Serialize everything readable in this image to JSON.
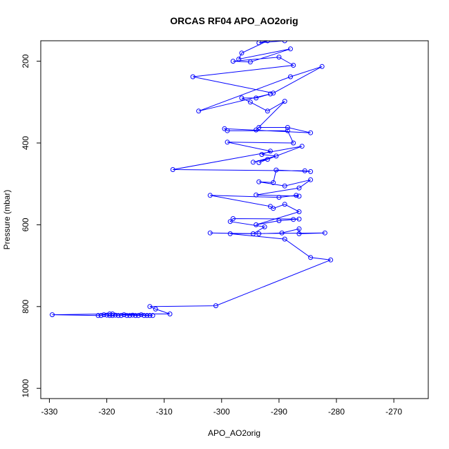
{
  "chart_data": {
    "type": "line",
    "title": "ORCAS RF04 APO_AO2orig",
    "xlabel": "APO_AO2orig",
    "ylabel": "Pressure (mbar)",
    "xlim": [
      -331.5,
      -264
    ],
    "ylim": [
      1025,
      150
    ],
    "y_inverted": true,
    "xticks": [
      -330,
      -320,
      -310,
      -300,
      -290,
      -280,
      -270
    ],
    "yticks": [
      200,
      400,
      600,
      800,
      1000
    ],
    "line_color": "#0000ff",
    "marker": "open-circle",
    "series": [
      {
        "points": [
          [
            -289.0,
            150
          ],
          [
            -293.5,
            155
          ],
          [
            -292.0,
            150
          ],
          [
            -296.5,
            180
          ],
          [
            -297.0,
            195
          ],
          [
            -288.0,
            170
          ],
          [
            -295.0,
            202
          ],
          [
            -298.0,
            200
          ],
          [
            -290.0,
            190
          ],
          [
            -287.5,
            210
          ],
          [
            -305.0,
            238
          ],
          [
            -291.0,
            278
          ],
          [
            -282.5,
            213
          ],
          [
            -288.0,
            238
          ],
          [
            -304.0,
            322
          ],
          [
            -291.5,
            280
          ],
          [
            -294.0,
            290
          ],
          [
            -296.5,
            290
          ],
          [
            -295.0,
            300
          ],
          [
            -292.0,
            322
          ],
          [
            -289.0,
            298
          ],
          [
            -294.0,
            368
          ],
          [
            -293.5,
            362
          ],
          [
            -288.5,
            362
          ],
          [
            -284.5,
            375
          ],
          [
            -299.5,
            365
          ],
          [
            -299.0,
            370
          ],
          [
            -288.5,
            370
          ],
          [
            -287.5,
            400
          ],
          [
            -299.0,
            398
          ],
          [
            -291.5,
            420
          ],
          [
            -293.0,
            428
          ],
          [
            -290.5,
            432
          ],
          [
            -294.5,
            447
          ],
          [
            -292.0,
            440
          ],
          [
            -293.5,
            448
          ],
          [
            -286.0,
            408
          ],
          [
            -308.5,
            465
          ],
          [
            -285.5,
            468
          ],
          [
            -284.5,
            470
          ],
          [
            -290.5,
            466
          ],
          [
            -291.0,
            497
          ],
          [
            -293.5,
            495
          ],
          [
            -289.0,
            505
          ],
          [
            -284.5,
            490
          ],
          [
            -286.5,
            510
          ],
          [
            -294.0,
            527
          ],
          [
            -286.5,
            530
          ],
          [
            -287.0,
            528
          ],
          [
            -290.0,
            533
          ],
          [
            -302.0,
            528
          ],
          [
            -291.5,
            555
          ],
          [
            -291.0,
            560
          ],
          [
            -289.0,
            550
          ],
          [
            -286.5,
            568
          ],
          [
            -294.0,
            600
          ],
          [
            -290.0,
            590
          ],
          [
            -287.5,
            587
          ],
          [
            -286.5,
            586
          ],
          [
            -298.0,
            585
          ],
          [
            -298.5,
            592
          ],
          [
            -292.5,
            605
          ],
          [
            -294.5,
            622
          ],
          [
            -302.0,
            620
          ],
          [
            -293.5,
            622
          ],
          [
            -289.5,
            620
          ],
          [
            -286.5,
            610
          ],
          [
            -286.5,
            622
          ],
          [
            -282.0,
            620
          ],
          [
            -298.5,
            622
          ],
          [
            -289.0,
            635
          ],
          [
            -284.5,
            680
          ],
          [
            -281.0,
            686
          ],
          [
            -301.0,
            798
          ],
          [
            -312.5,
            800
          ],
          [
            -311.5,
            806
          ],
          [
            -309.0,
            818
          ],
          [
            -319.5,
            818
          ],
          [
            -329.5,
            820
          ],
          [
            -321.5,
            822
          ],
          [
            -321.0,
            822
          ],
          [
            -320.5,
            820
          ],
          [
            -320.0,
            821
          ],
          [
            -319.5,
            822
          ],
          [
            -319.0,
            822
          ],
          [
            -318.5,
            821
          ],
          [
            -318.0,
            822
          ],
          [
            -317.5,
            822
          ],
          [
            -317.0,
            820
          ],
          [
            -316.5,
            822
          ],
          [
            -316.0,
            822
          ],
          [
            -315.5,
            821
          ],
          [
            -315.0,
            822
          ],
          [
            -314.5,
            822
          ],
          [
            -314.0,
            820
          ],
          [
            -313.5,
            822
          ],
          [
            -313.0,
            822
          ],
          [
            -312.5,
            822
          ],
          [
            -312.0,
            822
          ],
          [
            -319.0,
            818
          ]
        ]
      }
    ]
  }
}
